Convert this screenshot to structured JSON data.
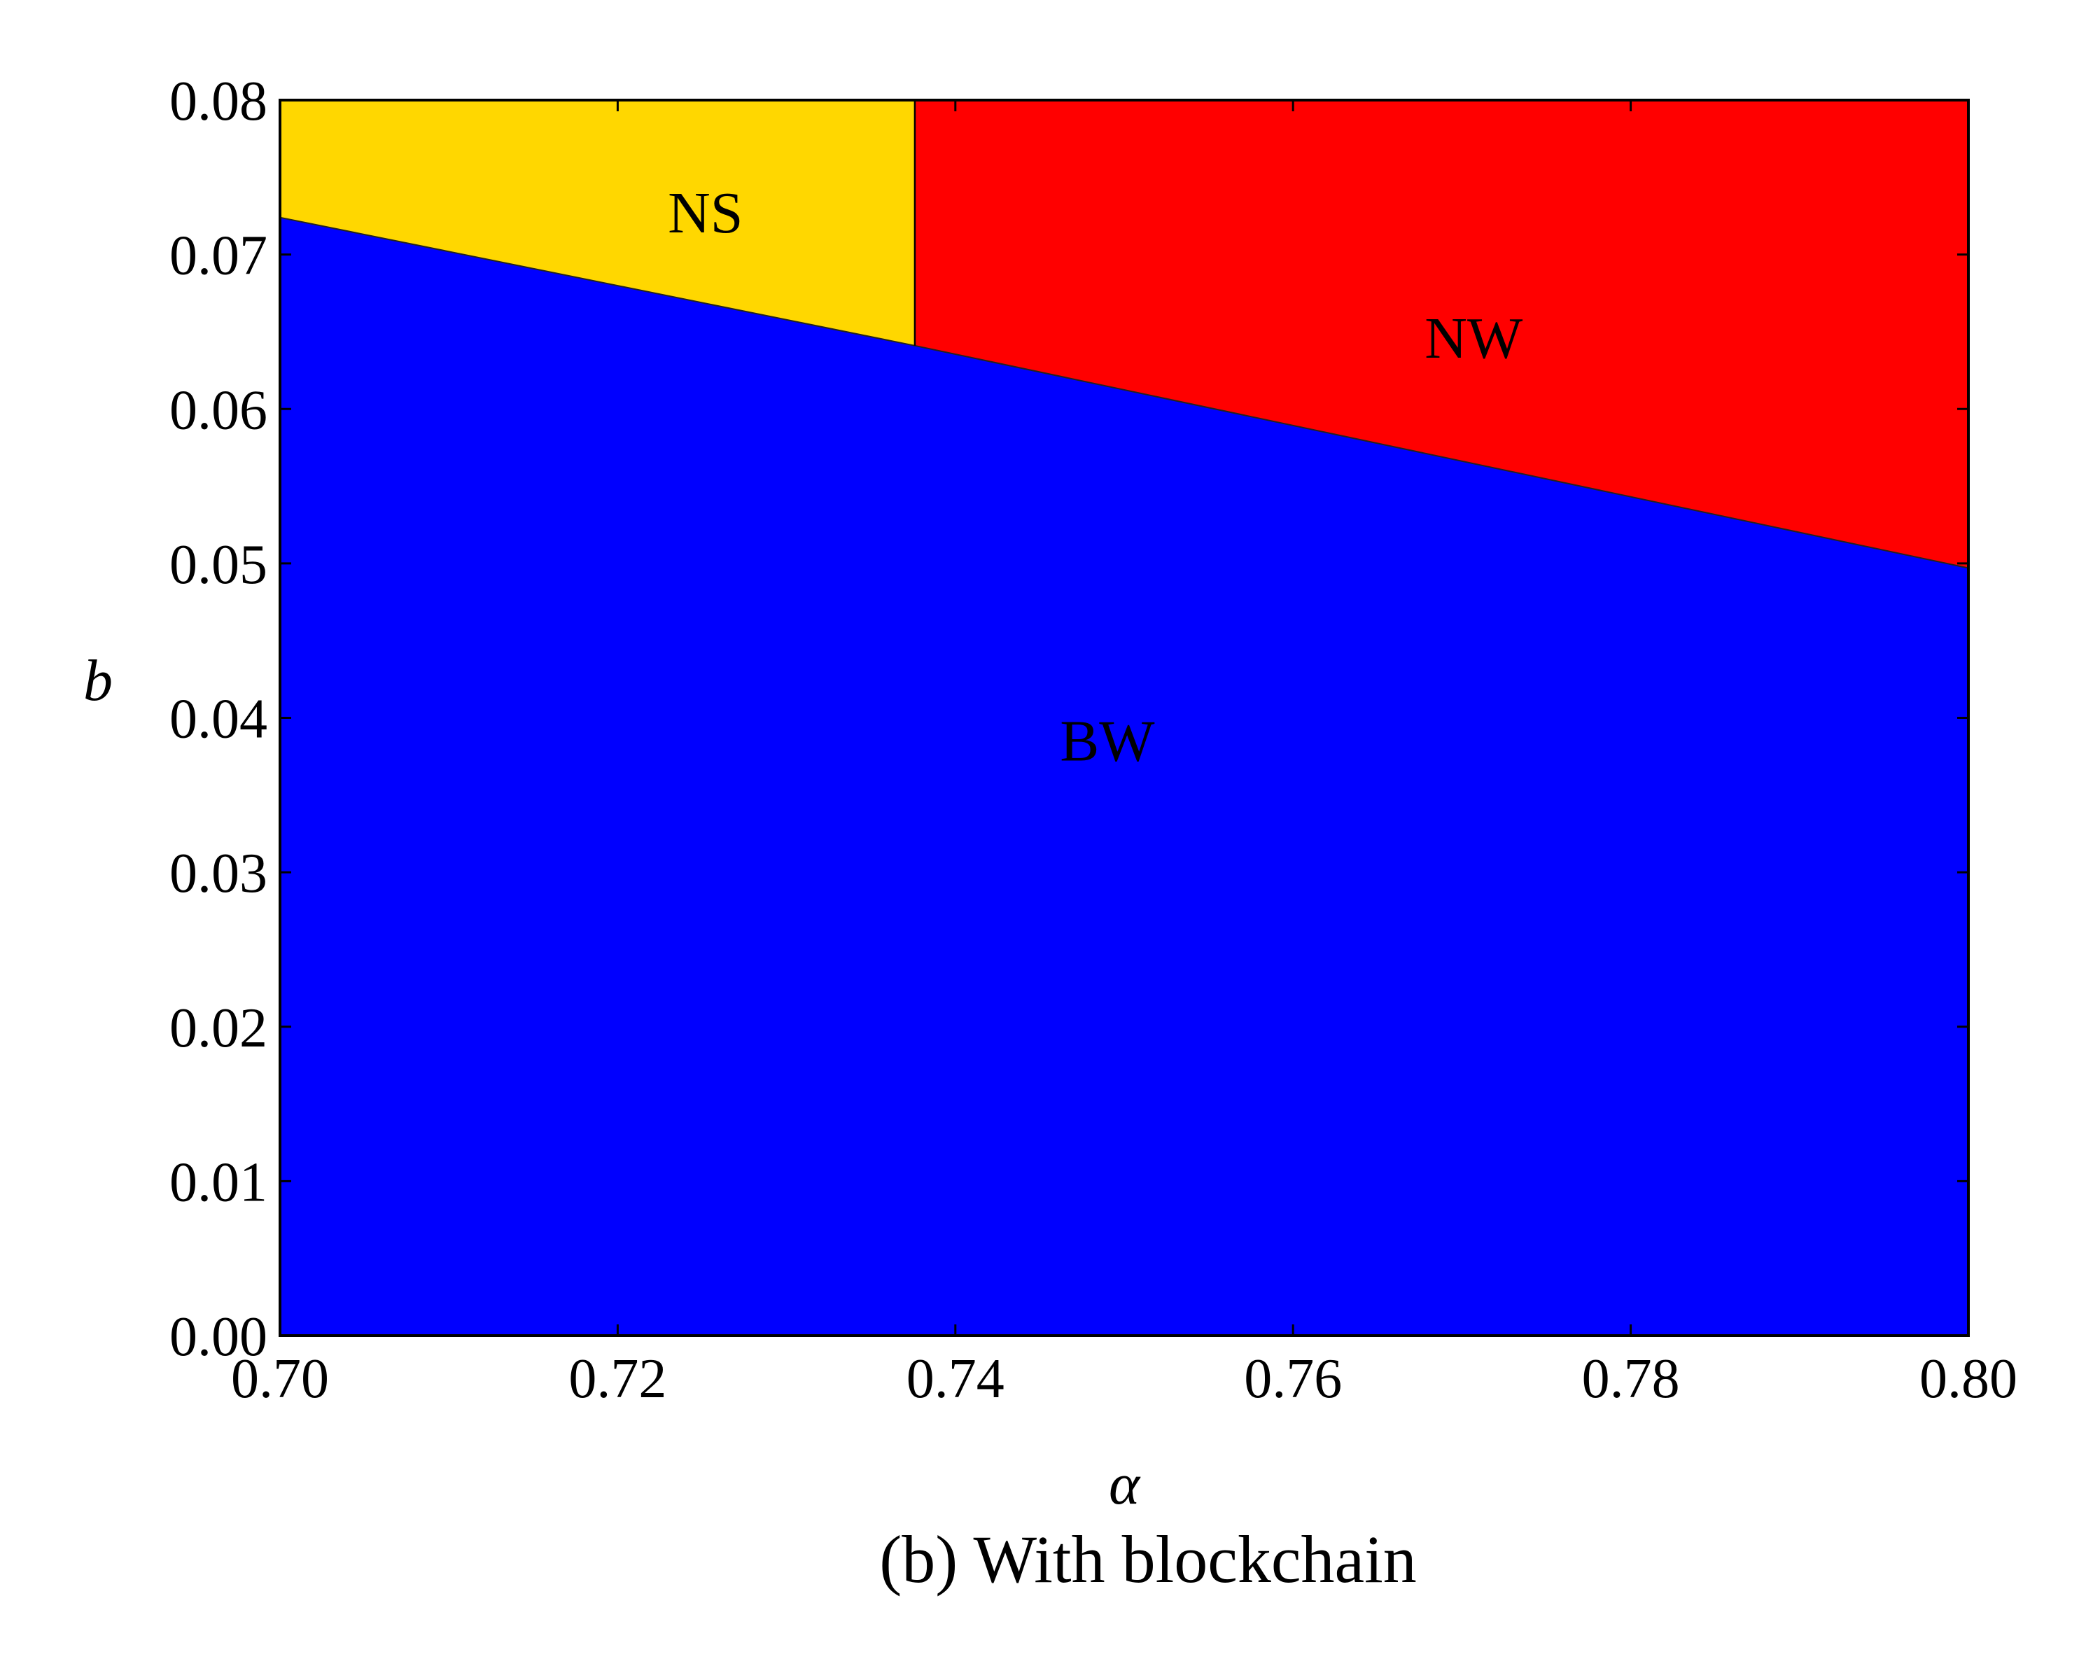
{
  "chart_data": {
    "type": "area",
    "xlabel": "α",
    "ylabel": "b",
    "caption": "(b) With blockchain",
    "xlim": [
      0.7,
      0.8
    ],
    "ylim": [
      0.0,
      0.08
    ],
    "x_ticks": [
      "0.70",
      "0.72",
      "0.74",
      "0.76",
      "0.78",
      "0.80"
    ],
    "y_ticks": [
      "0.00",
      "0.01",
      "0.02",
      "0.03",
      "0.04",
      "0.05",
      "0.06",
      "0.07",
      "0.08"
    ],
    "grid": false,
    "boundary": {
      "x": [
        0.7,
        0.7376,
        0.8
      ],
      "y": [
        0.0724,
        0.0641,
        0.0497
      ]
    },
    "vertical_divider_x": 0.7376,
    "regions": [
      {
        "name": "BW",
        "color": "#0000FF",
        "label_at": [
          0.749,
          0.0385
        ]
      },
      {
        "name": "NS",
        "color": "#FFD700",
        "label_at": [
          0.7252,
          0.0727
        ]
      },
      {
        "name": "NW",
        "color": "#FF0000",
        "label_at": [
          0.7707,
          0.0646
        ]
      }
    ]
  }
}
